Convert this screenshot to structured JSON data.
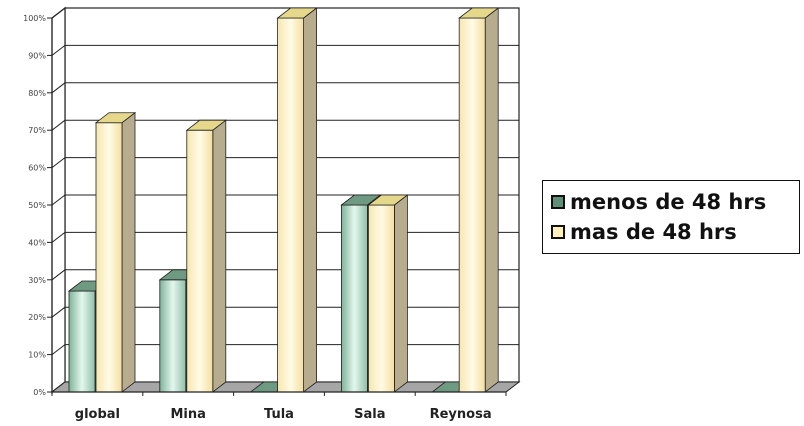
{
  "chart_data": {
    "type": "bar",
    "categories": [
      "global",
      "Mina",
      "Tula",
      "Sala",
      "Reynosa"
    ],
    "series": [
      {
        "name": "menos de 48 hrs",
        "values": [
          27,
          30,
          0,
          50,
          0
        ]
      },
      {
        "name": "mas de 48 hrs",
        "values": [
          72,
          70,
          100,
          50,
          100
        ]
      }
    ],
    "ylim": [
      0,
      100
    ],
    "yticks": [
      "0%",
      "10%",
      "20%",
      "30%",
      "40%",
      "50%",
      "60%",
      "70%",
      "80%",
      "90%",
      "100%"
    ],
    "grid": true,
    "legend_position": "right",
    "colors": {
      "menos_front": "#bfe6d4",
      "menos_dark": "#5f8f76",
      "menos_top": "#6f9a82",
      "mas_front": "#fff0bf",
      "mas_dark": "#b7ad8e",
      "mas_top": "#e6d88a",
      "floor": "#a6a6a6"
    }
  }
}
